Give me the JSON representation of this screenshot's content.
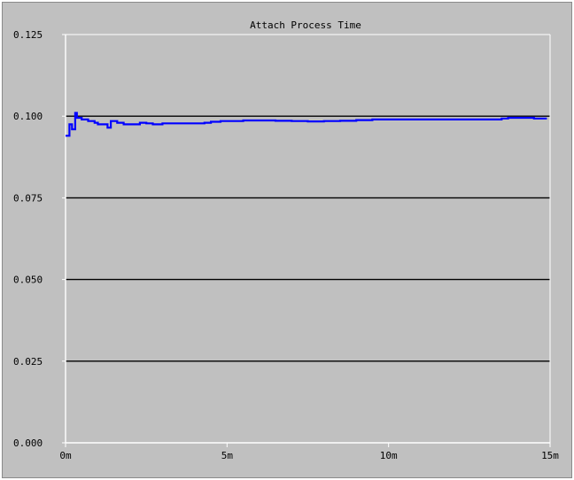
{
  "chart_data": {
    "type": "line",
    "title": "Attach Process Time",
    "xlabel": "",
    "ylabel": "",
    "x_unit": "minutes",
    "xlim": [
      0,
      15
    ],
    "ylim": [
      0,
      0.125
    ],
    "x_ticks": [
      "0m",
      "5m",
      "10m",
      "15m"
    ],
    "y_ticks": [
      "0.125",
      "0.100",
      "0.075",
      "0.050",
      "0.025",
      "0.000"
    ],
    "grid": true,
    "legend": "none",
    "series": [
      {
        "color": "#0000ff",
        "x": [
          0,
          0.1,
          0.12,
          0.2,
          0.3,
          0.35,
          0.5,
          0.7,
          0.9,
          1.0,
          1.3,
          1.4,
          1.6,
          1.8,
          2.0,
          2.3,
          2.5,
          2.7,
          3.0,
          3.2,
          3.5,
          3.8,
          4.0,
          4.3,
          4.5,
          4.8,
          5.0,
          5.5,
          6.0,
          6.5,
          7.0,
          7.5,
          8.0,
          8.5,
          9.0,
          9.5,
          10.0,
          10.5,
          11.0,
          11.5,
          12.0,
          12.5,
          13.0,
          13.3,
          13.5,
          13.7,
          14.0,
          14.3,
          14.5,
          14.7,
          14.9
        ],
        "y": [
          0.094,
          0.094,
          0.0975,
          0.096,
          0.101,
          0.0995,
          0.099,
          0.0985,
          0.098,
          0.0975,
          0.0965,
          0.0985,
          0.098,
          0.0975,
          0.0975,
          0.098,
          0.0978,
          0.0975,
          0.0978,
          0.0978,
          0.0978,
          0.0978,
          0.0978,
          0.098,
          0.0983,
          0.0985,
          0.0985,
          0.0987,
          0.0987,
          0.0986,
          0.0985,
          0.0984,
          0.0985,
          0.0986,
          0.0988,
          0.099,
          0.099,
          0.099,
          0.099,
          0.099,
          0.099,
          0.099,
          0.099,
          0.099,
          0.0993,
          0.0995,
          0.0995,
          0.0995,
          0.0993,
          0.0993,
          0.0993
        ]
      }
    ]
  }
}
